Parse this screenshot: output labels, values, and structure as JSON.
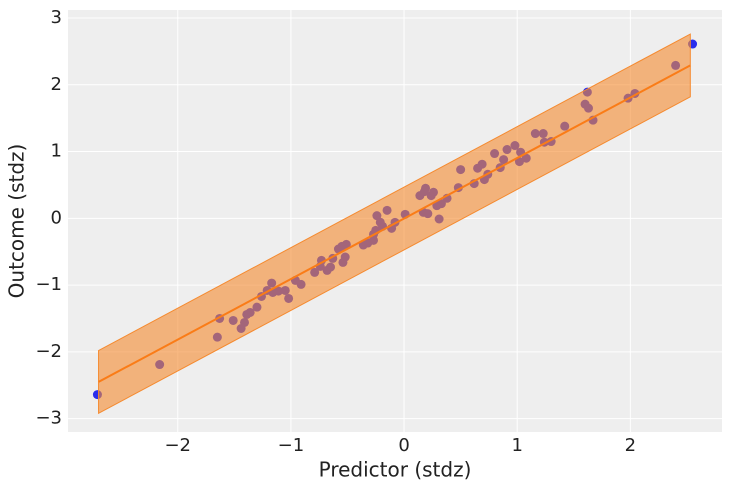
{
  "chart_data": {
    "type": "scatter",
    "xlabel": "Predictor (stdz)",
    "ylabel": "Outcome (stdz)",
    "xlim": [
      -2.97,
      2.81
    ],
    "ylim": [
      -3.2,
      3.12
    ],
    "xticks": [
      {
        "value": -2,
        "label": "−2"
      },
      {
        "value": -1,
        "label": "−1"
      },
      0,
      1,
      2
    ],
    "yticks": [
      {
        "value": -3,
        "label": "−3"
      },
      {
        "value": -2,
        "label": "−2"
      },
      {
        "value": -1,
        "label": "−1"
      },
      0,
      1,
      2,
      3
    ],
    "grid": true,
    "series": [
      {
        "color": "#2a2eec",
        "x": [
          -2.71,
          -2.16,
          -1.65,
          -1.63,
          -1.51,
          -1.44,
          -1.41,
          -1.39,
          -1.36,
          -1.3,
          -1.26,
          -1.21,
          -1.17,
          -1.16,
          -1.11,
          -1.05,
          -1.02,
          -0.96,
          -0.91,
          -0.79,
          -0.74,
          -0.73,
          -0.68,
          -0.65,
          -0.63,
          -0.58,
          -0.55,
          -0.51,
          -0.54,
          -0.52,
          -0.36,
          -0.32,
          -0.27,
          -0.25,
          -0.27,
          -0.24,
          -0.21,
          -0.19,
          -0.15,
          -0.11,
          -0.08,
          0.01,
          0.14,
          0.18,
          0.19,
          0.17,
          0.21,
          0.24,
          0.26,
          0.29,
          0.31,
          0.33,
          0.38,
          0.48,
          0.5,
          0.62,
          0.65,
          0.69,
          0.71,
          0.74,
          0.8,
          0.85,
          0.88,
          0.91,
          0.98,
          1.02,
          1.03,
          1.08,
          1.16,
          1.23,
          1.24,
          1.3,
          1.42,
          1.6,
          1.62,
          1.63,
          1.67,
          1.98,
          2.04,
          2.4,
          2.55
        ],
        "values": [
          -2.64,
          -2.19,
          -1.78,
          -1.5,
          -1.53,
          -1.65,
          -1.56,
          -1.44,
          -1.41,
          -1.33,
          -1.17,
          -1.08,
          -0.97,
          -1.11,
          -1.09,
          -1.08,
          -1.2,
          -0.93,
          -0.99,
          -0.81,
          -0.72,
          -0.63,
          -0.78,
          -0.73,
          -0.6,
          -0.46,
          -0.42,
          -0.39,
          -0.66,
          -0.58,
          -0.4,
          -0.37,
          -0.24,
          -0.18,
          -0.33,
          0.04,
          -0.06,
          -0.12,
          0.12,
          -0.15,
          -0.06,
          0.06,
          0.34,
          0.4,
          0.45,
          0.09,
          0.07,
          0.34,
          0.39,
          0.19,
          -0.01,
          0.22,
          0.3,
          0.46,
          0.73,
          0.52,
          0.75,
          0.81,
          0.58,
          0.66,
          0.97,
          0.76,
          0.88,
          1.03,
          1.09,
          0.85,
          0.99,
          0.9,
          1.27,
          1.27,
          1.14,
          1.15,
          1.38,
          1.71,
          1.89,
          1.65,
          1.47,
          1.8,
          1.87,
          2.29,
          2.61
        ]
      }
    ],
    "fit": {
      "color": "#fa7c17",
      "x": [
        -2.7,
        2.53
      ],
      "y": [
        -2.45,
        2.29
      ]
    },
    "band": {
      "color": "#f58a2f",
      "x": [
        -2.7,
        2.53
      ],
      "lower": [
        -2.92,
        1.82
      ],
      "upper": [
        -1.98,
        2.76
      ]
    }
  }
}
